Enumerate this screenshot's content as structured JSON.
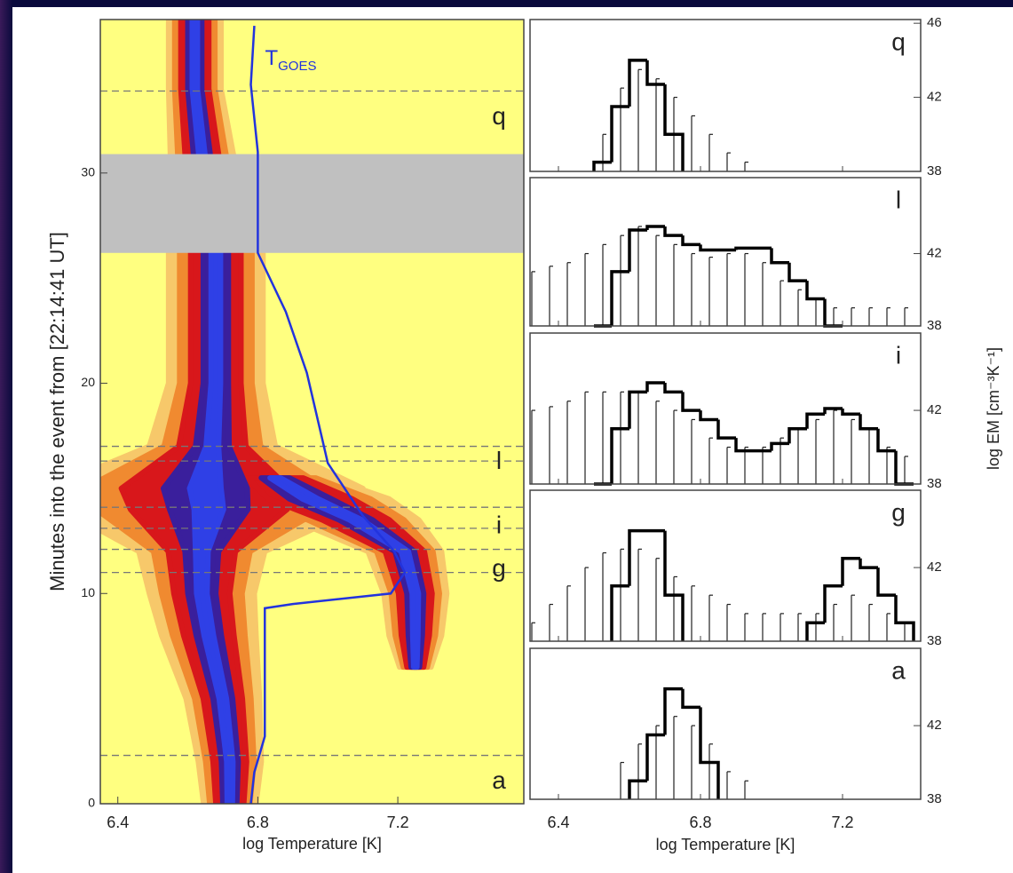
{
  "chart_data": [
    {
      "type": "heatmap",
      "x_label": "log Temperature [K]",
      "y_label": "Minutes into the event from [22:14:41 UT]",
      "xlim": [
        6.35,
        7.56
      ],
      "xticks": [
        6.4,
        6.8,
        7.2
      ],
      "ylim": [
        0,
        37.3
      ],
      "yticks": [
        0,
        10,
        20,
        30
      ],
      "background": "#ffff80",
      "gap": {
        "ylim": [
          26.2,
          30.9
        ],
        "color": "#c0c0c0"
      },
      "layer_colors": [
        "#f7c86a",
        "#f08a30",
        "#d8171b",
        "#3a1f9c",
        "#2f40e6"
      ],
      "ridges": [
        {
          "y": [
            0,
            2,
            5,
            8,
            10,
            12,
            14,
            15,
            17,
            20,
            24,
            26.2,
            30.9,
            34,
            37.3
          ],
          "x": [
            6.72,
            6.72,
            6.7,
            6.66,
            6.64,
            6.64,
            6.66,
            6.65,
            6.67,
            6.68,
            6.68,
            6.68,
            6.64,
            6.62,
            6.62
          ],
          "width": [
            0.05,
            0.06,
            0.07,
            0.09,
            0.1,
            0.12,
            0.28,
            0.3,
            0.12,
            0.09,
            0.09,
            0.09,
            0.06,
            0.05,
            0.05
          ]
        },
        {
          "y": [
            6.5,
            8,
            10,
            12,
            13.5,
            14.5,
            15.5
          ],
          "x": [
            7.25,
            7.25,
            7.25,
            7.22,
            7.08,
            6.95,
            6.85
          ],
          "width": [
            0.03,
            0.05,
            0.06,
            0.07,
            0.12,
            0.15,
            0.1
          ]
        }
      ],
      "series": [
        {
          "name": "T",
          "subscript": "GOES",
          "color": "#2233dd",
          "x": [
            6.78,
            6.79,
            6.82,
            6.82,
            6.82,
            6.82,
            6.9,
            7.18,
            7.22,
            7.19,
            7.1,
            7.0,
            6.94,
            6.88,
            6.8,
            6.8,
            6.78,
            6.79
          ],
          "y": [
            0,
            1.5,
            3.2,
            6.1,
            8.2,
            9.3,
            9.5,
            10.0,
            11.0,
            12.0,
            13.7,
            16.2,
            20.5,
            23.4,
            26.2,
            31.0,
            34.2,
            37.0
          ]
        }
      ],
      "events": [
        {
          "label": "q",
          "times": [
            33.9
          ]
        },
        {
          "label": "l",
          "times": [
            17.0,
            16.3
          ]
        },
        {
          "label": "i",
          "times": [
            14.1,
            13.1
          ]
        },
        {
          "label": "g",
          "times": [
            12.1,
            11.0
          ]
        },
        {
          "label": "a",
          "times": [
            2.3
          ]
        }
      ]
    },
    {
      "type": "histogram",
      "label": "q",
      "color": "#000000",
      "bins": [
        6.3,
        6.35,
        6.4,
        6.45,
        6.5,
        6.55,
        6.6,
        6.65,
        6.7,
        6.75,
        6.8,
        6.85,
        6.9,
        6.95,
        7.0,
        7.05,
        7.1,
        7.15,
        7.2,
        7.25,
        7.3,
        7.35,
        7.4
      ],
      "values": [
        null,
        null,
        null,
        null,
        38.5,
        41.5,
        44,
        42.7,
        40,
        null,
        null,
        null,
        null,
        null,
        null,
        null,
        null,
        null,
        null,
        null,
        null,
        null
      ],
      "upper": [
        null,
        null,
        null,
        null,
        40,
        42.5,
        43.5,
        43,
        42,
        41,
        40,
        39,
        38.5,
        null,
        null,
        null,
        null,
        null,
        null,
        null,
        null,
        null
      ],
      "xlim": [
        6.32,
        7.42
      ],
      "xticks": [
        6.4,
        6.8,
        7.2
      ],
      "ylim": [
        38,
        46.2
      ],
      "yticks": [
        38,
        42,
        46
      ]
    },
    {
      "type": "histogram",
      "label": "l",
      "color": "#000000",
      "bins": [
        6.3,
        6.35,
        6.4,
        6.45,
        6.5,
        6.55,
        6.6,
        6.65,
        6.7,
        6.75,
        6.8,
        6.85,
        6.9,
        6.95,
        7.0,
        7.05,
        7.1,
        7.15,
        7.2,
        7.25,
        7.3,
        7.35,
        7.4
      ],
      "values": [
        null,
        null,
        null,
        null,
        38,
        41,
        43.3,
        43.5,
        43,
        42.5,
        42.2,
        42.2,
        42.3,
        42.3,
        41.5,
        40.5,
        39.5,
        38,
        null,
        null,
        null,
        null
      ],
      "upper": [
        41,
        41.3,
        41.5,
        42,
        42.5,
        43,
        43.5,
        43,
        42.5,
        42,
        41.8,
        42,
        42,
        41.5,
        40.5,
        40,
        39.5,
        39,
        39,
        39,
        39,
        39
      ],
      "xlim": [
        6.32,
        7.42
      ],
      "xticks": [
        6.4,
        6.8,
        7.2
      ],
      "ylim": [
        38,
        46.2
      ],
      "yticks": [
        38,
        42
      ]
    },
    {
      "type": "histogram",
      "label": "i",
      "color": "#000000",
      "y_label": "log EM [cm⁻³K⁻¹]",
      "bins": [
        6.3,
        6.35,
        6.4,
        6.45,
        6.5,
        6.55,
        6.6,
        6.65,
        6.7,
        6.75,
        6.8,
        6.85,
        6.9,
        6.95,
        7.0,
        7.05,
        7.1,
        7.15,
        7.2,
        7.25,
        7.3,
        7.35,
        7.4
      ],
      "values": [
        null,
        null,
        null,
        null,
        38,
        41,
        43,
        43.5,
        43,
        42,
        41.5,
        40.5,
        39.8,
        39.8,
        40.2,
        41,
        41.8,
        42.1,
        41.8,
        41,
        39.8,
        38
      ],
      "upper": [
        42,
        42.2,
        42.5,
        43,
        43,
        43,
        43,
        42.5,
        42,
        41.5,
        40.5,
        40,
        40,
        40,
        40.5,
        41,
        41.5,
        42,
        41.5,
        41,
        40,
        39.5
      ],
      "xlim": [
        6.32,
        7.42
      ],
      "xticks": [
        6.4,
        6.8,
        7.2
      ],
      "ylim": [
        38,
        46.2
      ],
      "yticks": [
        38,
        42
      ]
    },
    {
      "type": "histogram",
      "label": "g",
      "color": "#000000",
      "bins": [
        6.3,
        6.35,
        6.4,
        6.45,
        6.5,
        6.55,
        6.6,
        6.65,
        6.7,
        6.75,
        6.8,
        6.85,
        6.9,
        6.95,
        7.0,
        7.05,
        7.1,
        7.15,
        7.2,
        7.25,
        7.3,
        7.35,
        7.4
      ],
      "values": [
        null,
        null,
        null,
        null,
        null,
        41,
        44,
        44,
        40.5,
        null,
        null,
        null,
        null,
        null,
        null,
        null,
        39,
        41,
        42.5,
        42,
        40.5,
        39
      ],
      "upper": [
        39,
        40,
        41,
        42,
        42.8,
        43,
        43,
        42.5,
        41.5,
        41,
        40.5,
        40,
        39.5,
        39.5,
        39.5,
        39.5,
        39.5,
        40,
        40.5,
        40,
        39.5,
        39
      ],
      "xlim": [
        6.32,
        7.42
      ],
      "xticks": [
        6.4,
        6.8,
        7.2
      ],
      "ylim": [
        38,
        46.2
      ],
      "yticks": [
        38,
        42
      ]
    },
    {
      "type": "histogram",
      "label": "a",
      "color": "#000000",
      "x_label": "log Temperature [K]",
      "bins": [
        6.3,
        6.35,
        6.4,
        6.45,
        6.5,
        6.55,
        6.6,
        6.65,
        6.7,
        6.75,
        6.8,
        6.85,
        6.9,
        6.95,
        7.0,
        7.05,
        7.1,
        7.15,
        7.2,
        7.25,
        7.3,
        7.35,
        7.4
      ],
      "values": [
        null,
        null,
        null,
        null,
        null,
        null,
        39,
        41.5,
        44,
        43,
        40,
        null,
        null,
        null,
        null,
        null,
        null,
        null,
        null,
        null,
        null,
        null
      ],
      "upper": [
        null,
        null,
        null,
        null,
        null,
        40,
        41,
        42,
        42.5,
        42,
        41,
        39.5,
        39,
        null,
        null,
        null,
        null,
        null,
        null,
        null,
        null,
        null
      ],
      "xlim": [
        6.32,
        7.42
      ],
      "xticks": [
        6.4,
        6.8,
        7.2
      ],
      "ylim": [
        38,
        46.2
      ],
      "yticks": [
        38,
        42
      ]
    }
  ]
}
